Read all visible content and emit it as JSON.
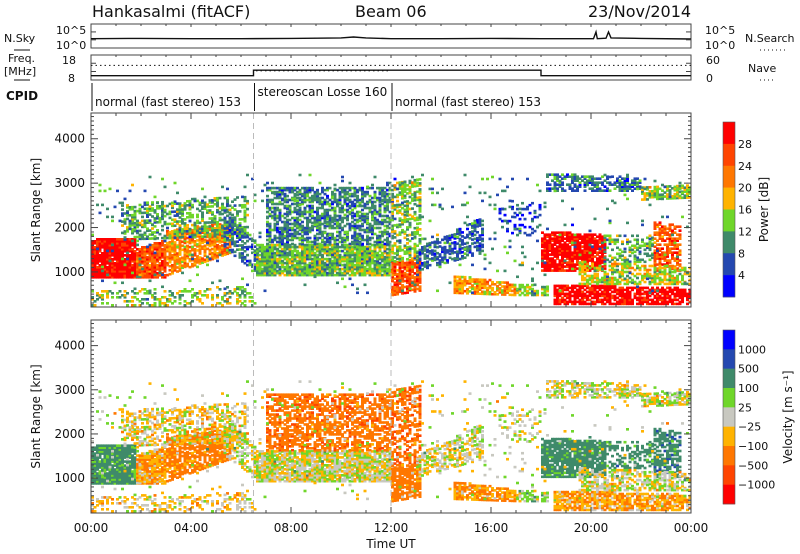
{
  "header": {
    "station": "Hankasalmi (fitACF)",
    "beam": "Beam 06",
    "date": "23/Nov/2014"
  },
  "noise_panel": {
    "left_label": "N.Sky",
    "right_label": "N.Search",
    "left_ticks": [
      "10^5",
      "10^0"
    ],
    "right_ticks": [
      "10^5",
      "10^0"
    ],
    "nsky_log10": [
      [
        0,
        2.6
      ],
      [
        2,
        2.7
      ],
      [
        4,
        2.6
      ],
      [
        6,
        2.6
      ],
      [
        8,
        2.7
      ],
      [
        10,
        2.9
      ],
      [
        10.5,
        3.2
      ],
      [
        11,
        2.9
      ],
      [
        12,
        2.6
      ],
      [
        14,
        2.6
      ],
      [
        16,
        2.7
      ],
      [
        18,
        2.6
      ],
      [
        20.1,
        2.6
      ],
      [
        20.2,
        5.0
      ],
      [
        20.25,
        2.6
      ],
      [
        20.6,
        2.8
      ],
      [
        20.7,
        5.0
      ],
      [
        20.8,
        2.9
      ],
      [
        22,
        2.7
      ],
      [
        24,
        2.5
      ]
    ]
  },
  "freq_panel": {
    "left_label_1": "Freq.",
    "left_label_2": "[MHz]",
    "right_label": "Nave",
    "left_ticks": [
      "18",
      "8"
    ],
    "right_ticks": [
      "60",
      "0"
    ],
    "freq_mhz": [
      [
        0,
        9.5
      ],
      [
        6.5,
        9.5
      ],
      [
        6.5,
        12
      ],
      [
        18,
        12
      ],
      [
        18,
        9.5
      ],
      [
        24,
        9.5
      ]
    ],
    "nave": [
      [
        0,
        37
      ],
      [
        24,
        37
      ]
    ],
    "nave2": [
      [
        6.6,
        22
      ],
      [
        12,
        22
      ]
    ]
  },
  "cpid_panel": {
    "label": "CPID",
    "segments": [
      {
        "start": 0,
        "end": 6.5,
        "label": "normal (fast stereo) 153"
      },
      {
        "start": 6.5,
        "end": 12,
        "label": "stereoscan Losse 160"
      },
      {
        "start": 12,
        "end": 24,
        "label": "normal (fast stereo) 153"
      }
    ]
  },
  "chart_data": [
    {
      "type": "heatmap",
      "title": "Power",
      "xlabel": "Time UT",
      "ylabel": "Slant Range [km]",
      "xlim": [
        0,
        24
      ],
      "ylim": [
        210,
        4580
      ],
      "yticks": [
        "1000",
        "2000",
        "3000",
        "4000"
      ],
      "colorbar": {
        "label": "Power [dB]",
        "ticks": [
          "28",
          "24",
          "20",
          "16",
          "12",
          "8",
          "4"
        ],
        "colors": [
          "#ff0000",
          "#ff4400",
          "#ff7700",
          "#ffb300",
          "#6fd62a",
          "#3f8a6a",
          "#2448b0",
          "#0000ff"
        ]
      }
    },
    {
      "type": "heatmap",
      "title": "Velocity",
      "xlabel": "Time UT",
      "ylabel": "Slant Range [km]",
      "xlim": [
        0,
        24
      ],
      "ylim": [
        210,
        4580
      ],
      "yticks": [
        "1000",
        "2000",
        "3000",
        "4000"
      ],
      "xticks": [
        "00:00",
        "04:00",
        "08:00",
        "12:00",
        "16:00",
        "20:00",
        "00:00"
      ],
      "colorbar": {
        "label": "Velocity [m s⁻¹]",
        "ticks": [
          "1000",
          "500",
          "100",
          "25",
          "−25",
          "−100",
          "−500",
          "−1000"
        ],
        "colors": [
          "#0000ff",
          "#2448b0",
          "#3f8a6a",
          "#6fd62a",
          "#c8c8c0",
          "#ffb300",
          "#ff7700",
          "#ff4400",
          "#ff0000"
        ]
      },
      "mode_change_times": [
        6.5,
        12
      ]
    }
  ],
  "echo_regions": [
    {
      "t": [
        0,
        1.8
      ],
      "r0": [
        850,
        850
      ],
      "r1": [
        1700,
        1750
      ],
      "power": 31,
      "vel": 150,
      "d": 0.95
    },
    {
      "t": [
        1.8,
        3.0
      ],
      "r0": [
        850,
        850
      ],
      "r1": [
        1500,
        1700
      ],
      "power": 25,
      "vel": -90,
      "d": 0.9
    },
    {
      "t": [
        3.0,
        5.5
      ],
      "r0": [
        900,
        1400
      ],
      "r1": [
        1900,
        2100
      ],
      "power": 21,
      "vel": -200,
      "d": 0.75
    },
    {
      "t": [
        1.2,
        6.2
      ],
      "r0": [
        1700,
        1800
      ],
      "r1": [
        2500,
        2700
      ],
      "power": 12,
      "vel": -30,
      "d": 0.45
    },
    {
      "t": [
        5.3,
        6.5
      ],
      "r0": [
        1500,
        1000
      ],
      "r1": [
        2400,
        1700
      ],
      "power": 8,
      "vel": 0,
      "d": 0.55
    },
    {
      "t": [
        0,
        6.5
      ],
      "r0": [
        220,
        220
      ],
      "r1": [
        550,
        650
      ],
      "power": 14,
      "vel": -40,
      "d": 0.3
    },
    {
      "t": [
        6.6,
        12
      ],
      "r0": [
        900,
        900
      ],
      "r1": [
        1600,
        1600
      ],
      "power": 13,
      "vel": 0,
      "d": 0.9
    },
    {
      "t": [
        7.0,
        12
      ],
      "r0": [
        1600,
        1600
      ],
      "r1": [
        2900,
        2900
      ],
      "power": 9,
      "vel": -350,
      "d": 0.6
    },
    {
      "t": [
        12,
        13.1
      ],
      "r0": [
        450,
        550
      ],
      "r1": [
        1200,
        1300
      ],
      "power": 25,
      "vel": -250,
      "d": 0.8
    },
    {
      "t": [
        12,
        13.1
      ],
      "r0": [
        1200,
        1300
      ],
      "r1": [
        3000,
        3100
      ],
      "power": 14,
      "vel": -400,
      "d": 0.5
    },
    {
      "t": [
        13,
        15.6
      ],
      "r0": [
        1000,
        1400
      ],
      "r1": [
        1500,
        2200
      ],
      "power": 7,
      "vel": 0,
      "d": 0.55
    },
    {
      "t": [
        14.5,
        17.0
      ],
      "r0": [
        500,
        450
      ],
      "r1": [
        900,
        700
      ],
      "power": 20,
      "vel": -110,
      "d": 0.8
    },
    {
      "t": [
        17.0,
        18.3
      ],
      "r0": [
        450,
        450
      ],
      "r1": [
        700,
        650
      ],
      "power": 14,
      "vel": 50,
      "d": 0.75
    },
    {
      "t": [
        16.3,
        18.0
      ],
      "r0": [
        1800,
        1800
      ],
      "r1": [
        2600,
        2600
      ],
      "power": 5,
      "vel": 0,
      "d": 0.2
    },
    {
      "t": [
        18,
        20.6
      ],
      "r0": [
        1000,
        1000
      ],
      "r1": [
        1900,
        1800
      ],
      "power": 31,
      "vel": 200,
      "d": 0.85
    },
    {
      "t": [
        18.5,
        24
      ],
      "r0": [
        250,
        250
      ],
      "r1": [
        700,
        600
      ],
      "power": 31,
      "vel": -80,
      "d": 0.8
    },
    {
      "t": [
        18.2,
        22
      ],
      "r0": [
        2800,
        2800
      ],
      "r1": [
        3200,
        3100
      ],
      "power": 8,
      "vel": 0,
      "d": 0.55
    },
    {
      "t": [
        22,
        24
      ],
      "r0": [
        2600,
        2650
      ],
      "r1": [
        2900,
        2950
      ],
      "power": 14,
      "vel": 0,
      "d": 0.7
    },
    {
      "t": [
        20.5,
        22.5
      ],
      "r0": [
        1200,
        1200
      ],
      "r1": [
        1800,
        1800
      ],
      "power": 12,
      "vel": 300,
      "d": 0.45
    },
    {
      "t": [
        22.5,
        23.6
      ],
      "r0": [
        1000,
        1000
      ],
      "r1": [
        2100,
        2000
      ],
      "power": 25,
      "vel": 350,
      "d": 0.6
    },
    {
      "t": [
        19.5,
        24
      ],
      "r0": [
        700,
        700
      ],
      "r1": [
        1200,
        1100
      ],
      "power": 16,
      "vel": 0,
      "d": 0.6
    },
    {
      "t": [
        0,
        24
      ],
      "r0": [
        500,
        500
      ],
      "r1": [
        3200,
        3200
      ],
      "power": 10,
      "vel": 0,
      "d": 0.03
    }
  ]
}
